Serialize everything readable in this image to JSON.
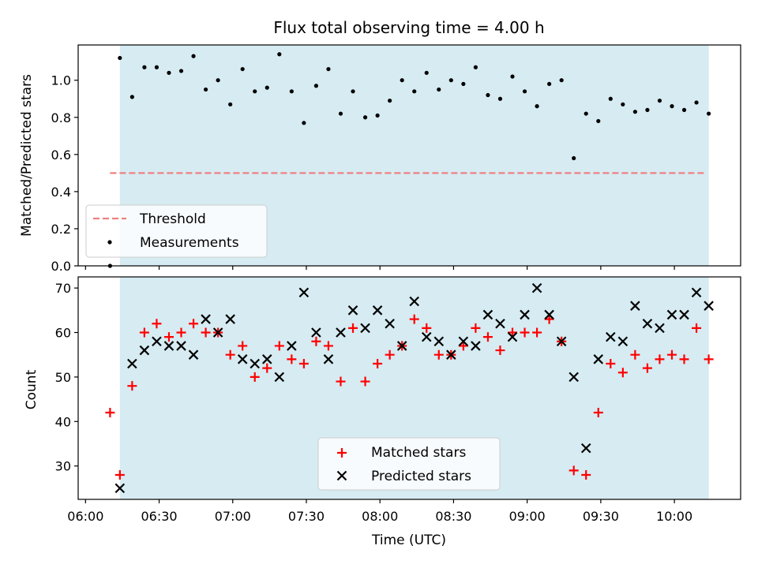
{
  "chart_data": [
    {
      "type": "scatter",
      "title": "Flux total observing time = 4.00 h",
      "xlabel": "",
      "ylabel": "Matched/Predicted stars",
      "ylim": [
        0,
        1.19
      ],
      "yticks": [
        "0.0",
        "0.2",
        "0.4",
        "0.6",
        "0.8",
        "1.0"
      ],
      "shaded_span": [
        "06:14",
        "10:14"
      ],
      "threshold": {
        "name": "Threshold",
        "value": 0.5,
        "x_start": "06:10",
        "x_end": "10:13",
        "color": "#f08080"
      },
      "series": [
        {
          "name": "Measurements",
          "marker": "dot",
          "color": "#000000",
          "x": [
            "06:10",
            "06:14",
            "06:19",
            "06:24",
            "06:29",
            "06:34",
            "06:39",
            "06:44",
            "06:49",
            "06:54",
            "06:59",
            "07:04",
            "07:09",
            "07:14",
            "07:19",
            "07:24",
            "07:29",
            "07:34",
            "07:39",
            "07:44",
            "07:49",
            "07:54",
            "07:59",
            "08:04",
            "08:09",
            "08:14",
            "08:19",
            "08:24",
            "08:29",
            "08:34",
            "08:39",
            "08:44",
            "08:49",
            "08:54",
            "08:59",
            "09:04",
            "09:09",
            "09:14",
            "09:19",
            "09:24",
            "09:29",
            "09:34",
            "09:39",
            "09:44",
            "09:49",
            "09:54",
            "09:59",
            "10:04",
            "10:09",
            "10:14"
          ],
          "y": [
            0.0,
            1.12,
            0.91,
            1.07,
            1.07,
            1.04,
            1.05,
            1.13,
            0.95,
            1.0,
            0.87,
            1.06,
            0.94,
            0.96,
            1.14,
            0.94,
            0.77,
            0.97,
            1.06,
            0.82,
            0.94,
            0.8,
            0.81,
            0.89,
            1.0,
            0.94,
            1.04,
            0.95,
            1.0,
            0.98,
            1.07,
            0.92,
            0.9,
            1.02,
            0.94,
            0.86,
            0.98,
            1.0,
            0.58,
            0.82,
            0.78,
            0.9,
            0.87,
            0.83,
            0.84,
            0.89,
            0.86,
            0.84,
            0.88,
            0.82
          ]
        }
      ],
      "legend": {
        "placement": "lower-left",
        "entries": [
          "Threshold",
          "Measurements"
        ]
      }
    },
    {
      "type": "scatter",
      "title": "",
      "xlabel": "Time (UTC)",
      "ylabel": "Count",
      "ylim": [
        22.5,
        72.5
      ],
      "yticks": [
        "30",
        "40",
        "50",
        "60",
        "70"
      ],
      "xticks": [
        "06:00",
        "06:30",
        "07:00",
        "07:30",
        "08:00",
        "08:30",
        "09:00",
        "09:30",
        "10:00"
      ],
      "xlim": [
        "05:57",
        "10:27"
      ],
      "shaded_span": [
        "06:14",
        "10:14"
      ],
      "series": [
        {
          "name": "Matched stars",
          "marker": "plus",
          "color": "#ff0000",
          "x": [
            "06:10",
            "06:14",
            "06:19",
            "06:24",
            "06:29",
            "06:34",
            "06:39",
            "06:44",
            "06:49",
            "06:54",
            "06:59",
            "07:04",
            "07:09",
            "07:14",
            "07:19",
            "07:24",
            "07:29",
            "07:34",
            "07:39",
            "07:44",
            "07:49",
            "07:54",
            "07:59",
            "08:04",
            "08:09",
            "08:14",
            "08:19",
            "08:24",
            "08:29",
            "08:34",
            "08:39",
            "08:44",
            "08:49",
            "08:54",
            "08:59",
            "09:04",
            "09:09",
            "09:14",
            "09:19",
            "09:24",
            "09:29",
            "09:34",
            "09:39",
            "09:44",
            "09:49",
            "09:54",
            "09:59",
            "10:04",
            "10:09",
            "10:14"
          ],
          "y": [
            42,
            28,
            48,
            60,
            62,
            59,
            60,
            62,
            60,
            60,
            55,
            57,
            50,
            52,
            57,
            54,
            53,
            58,
            57,
            49,
            61,
            49,
            53,
            55,
            57,
            63,
            61,
            55,
            55,
            57,
            61,
            59,
            56,
            60,
            60,
            60,
            63,
            58,
            29,
            28,
            42,
            53,
            51,
            55,
            52,
            54,
            55,
            54,
            61,
            54
          ]
        },
        {
          "name": "Predicted stars",
          "marker": "x",
          "color": "#000000",
          "x": [
            "06:14",
            "06:19",
            "06:24",
            "06:29",
            "06:34",
            "06:39",
            "06:44",
            "06:49",
            "06:54",
            "06:59",
            "07:04",
            "07:09",
            "07:14",
            "07:19",
            "07:24",
            "07:29",
            "07:34",
            "07:39",
            "07:44",
            "07:49",
            "07:54",
            "07:59",
            "08:04",
            "08:09",
            "08:14",
            "08:19",
            "08:24",
            "08:29",
            "08:34",
            "08:39",
            "08:44",
            "08:49",
            "08:54",
            "08:59",
            "09:04",
            "09:09",
            "09:14",
            "09:19",
            "09:24",
            "09:29",
            "09:34",
            "09:39",
            "09:44",
            "09:49",
            "09:54",
            "09:59",
            "10:04",
            "10:09",
            "10:14"
          ],
          "y": [
            25,
            53,
            56,
            58,
            57,
            57,
            55,
            63,
            60,
            63,
            54,
            53,
            54,
            50,
            57,
            69,
            60,
            54,
            60,
            65,
            61,
            65,
            62,
            57,
            67,
            59,
            58,
            55,
            58,
            57,
            64,
            62,
            59,
            64,
            70,
            64,
            58,
            50,
            34,
            54,
            59,
            58,
            66,
            62,
            61,
            64,
            64,
            69,
            66
          ]
        }
      ],
      "legend": {
        "placement": "lower-center",
        "entries": [
          "Matched stars",
          "Predicted stars"
        ]
      }
    }
  ]
}
